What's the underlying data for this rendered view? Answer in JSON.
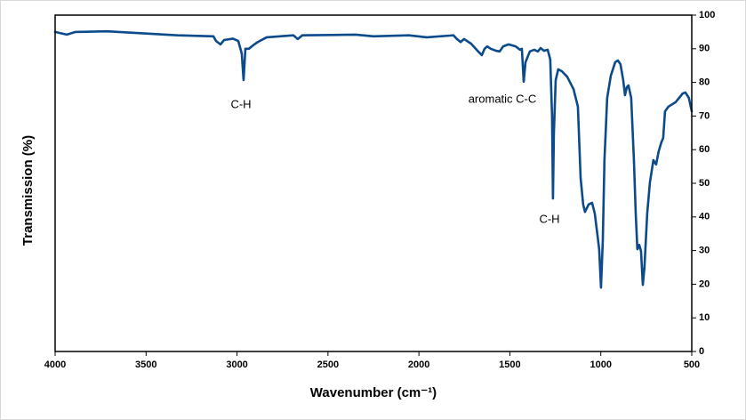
{
  "chart_data": {
    "type": "line",
    "xlabel": "Wavenumber (cm⁻¹)",
    "ylabel": "Transmission (%)",
    "annotations": [
      "C-H",
      "aromatic C-C",
      "C-H"
    ],
    "xlim": [
      4000,
      500
    ],
    "xticks": [
      4000,
      3500,
      3000,
      2500,
      2000,
      1500,
      1000,
      500
    ],
    "ylim": [
      0,
      100
    ],
    "yticks": [
      0,
      10,
      20,
      30,
      40,
      50,
      60,
      70,
      80,
      90,
      100
    ],
    "grid": false,
    "series": [
      {
        "color": "#0b4a8b",
        "x": [
          4000,
          3936,
          3888,
          3717,
          3326,
          3130,
          3115,
          3091,
          3071,
          3022,
          2993,
          2974,
          2964,
          2954,
          2935,
          2905,
          2886,
          2837,
          2690,
          2666,
          2641,
          2348,
          2250,
          2055,
          1957,
          1810,
          1791,
          1771,
          1752,
          1713,
          1674,
          1654,
          1639,
          1625,
          1605,
          1576,
          1556,
          1537,
          1507,
          1468,
          1444,
          1434,
          1424,
          1414,
          1390,
          1366,
          1346,
          1331,
          1312,
          1292,
          1278,
          1268,
          1263,
          1258,
          1248,
          1234,
          1214,
          1185,
          1150,
          1126,
          1111,
          1097,
          1087,
          1067,
          1048,
          1033,
          1018,
          1009,
          999,
          989,
          980,
          965,
          945,
          921,
          906,
          892,
          877,
          867,
          857,
          848,
          833,
          818,
          808,
          799,
          789,
          779,
          769,
          760,
          745,
          730,
          711,
          696,
          682,
          667,
          657,
          647,
          628,
          589,
          550,
          535,
          516,
          500
        ],
        "values": [
          95,
          94.2,
          95,
          95.2,
          94,
          93.7,
          92.3,
          91.3,
          92.6,
          93,
          92.3,
          88.6,
          80.7,
          90,
          90,
          91.3,
          92,
          93.4,
          94,
          92.9,
          94,
          94.2,
          93.7,
          94,
          93.4,
          94,
          92.9,
          92,
          92.9,
          91.5,
          89.2,
          88.1,
          90,
          90.7,
          90,
          89.4,
          89.2,
          90.7,
          91.3,
          90.7,
          89.7,
          90,
          80.2,
          86,
          89.2,
          89.7,
          89.2,
          90.2,
          89.4,
          89.7,
          86.8,
          70,
          45.5,
          64.8,
          80.7,
          83.9,
          83.3,
          81.7,
          78,
          72.8,
          51.6,
          43.7,
          41.5,
          43.7,
          44.2,
          41,
          34.4,
          30.4,
          19,
          33,
          56.9,
          75.4,
          82,
          86,
          86.5,
          85.4,
          80.7,
          76.2,
          78.6,
          79.1,
          75.4,
          56.9,
          41,
          30.4,
          31.7,
          29.9,
          19.8,
          25.1,
          41,
          50.3,
          56.9,
          55.6,
          59.5,
          62.2,
          63.5,
          71.4,
          72.8,
          74.1,
          76.7,
          77,
          75.4,
          71.4
        ]
      }
    ]
  }
}
